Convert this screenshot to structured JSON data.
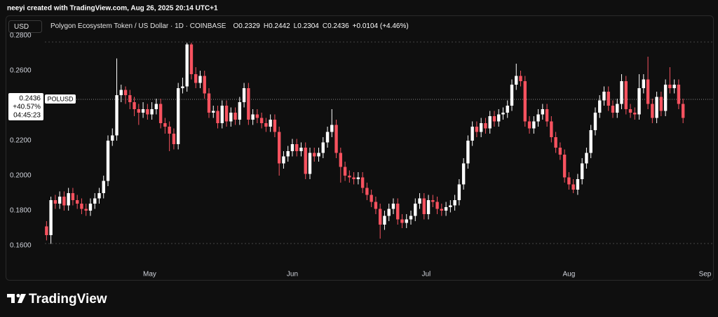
{
  "attribution": "neeyi created with TradingView.com, Aug 26, 2025 20:14 UTC+1",
  "brand": "TradingView",
  "chart_data": {
    "type": "candlestick",
    "currency": "USD",
    "title": "Polygon Ecosystem Token / US Dollar · 1D · COINBASE",
    "legend_ohlc": [
      {
        "label": "O",
        "value": 0.2329
      },
      {
        "label": "H",
        "value": 0.2442
      },
      {
        "label": "L",
        "value": 0.2304
      },
      {
        "label": "C",
        "value": 0.2436
      }
    ],
    "change": "+0.0104 (+4.46%)",
    "symbol": "POLUSD",
    "last_price": {
      "value": 0.2436,
      "label": "0.2436"
    },
    "change_pct": "+40.57%",
    "countdown": "04:45:23",
    "up_color": "#ffffff",
    "down_color": "#f7525f",
    "grid": false,
    "dotted_lines": [
      0.2764,
      0.1612
    ],
    "ylim": [
      0.1516,
      0.2812
    ],
    "yticks": [
      {
        "value": 0.16,
        "label": "0.1600"
      },
      {
        "value": 0.18,
        "label": "0.1800"
      },
      {
        "value": 0.2,
        "label": "0.2000"
      },
      {
        "value": 0.22,
        "label": "0.2200"
      },
      {
        "value": 0.26,
        "label": "0.2600"
      },
      {
        "value": 0.28,
        "label": "0.2800"
      }
    ],
    "xlim": [
      -9,
      152
    ],
    "xticks": [
      {
        "value": 23.5,
        "label": "May"
      },
      {
        "value": 56,
        "label": "Jun"
      },
      {
        "value": 86.5,
        "label": "Jul"
      },
      {
        "value": 119,
        "label": "Aug"
      },
      {
        "value": 150,
        "label": "Sep"
      }
    ],
    "ohlc": [
      [
        0.171,
        0.174,
        0.163,
        0.166
      ],
      [
        0.166,
        0.188,
        0.161,
        0.186
      ],
      [
        0.186,
        0.189,
        0.181,
        0.184
      ],
      [
        0.184,
        0.191,
        0.181,
        0.188
      ],
      [
        0.188,
        0.191,
        0.18,
        0.183
      ],
      [
        0.183,
        0.193,
        0.18,
        0.19
      ],
      [
        0.19,
        0.193,
        0.183,
        0.186
      ],
      [
        0.186,
        0.189,
        0.181,
        0.184
      ],
      [
        0.184,
        0.187,
        0.178,
        0.181
      ],
      [
        0.181,
        0.184,
        0.177,
        0.18
      ],
      [
        0.18,
        0.187,
        0.177,
        0.184
      ],
      [
        0.184,
        0.19,
        0.181,
        0.187
      ],
      [
        0.187,
        0.193,
        0.184,
        0.19
      ],
      [
        0.19,
        0.2,
        0.187,
        0.197
      ],
      [
        0.197,
        0.223,
        0.194,
        0.22
      ],
      [
        0.22,
        0.227,
        0.217,
        0.223
      ],
      [
        0.223,
        0.267,
        0.22,
        0.246
      ],
      [
        0.246,
        0.252,
        0.242,
        0.249
      ],
      [
        0.249,
        0.251,
        0.241,
        0.246
      ],
      [
        0.246,
        0.249,
        0.238,
        0.242
      ],
      [
        0.242,
        0.245,
        0.234,
        0.238
      ],
      [
        0.238,
        0.241,
        0.229,
        0.236
      ],
      [
        0.236,
        0.242,
        0.233,
        0.238
      ],
      [
        0.238,
        0.241,
        0.232,
        0.235
      ],
      [
        0.235,
        0.242,
        0.232,
        0.238
      ],
      [
        0.238,
        0.244,
        0.235,
        0.241
      ],
      [
        0.241,
        0.244,
        0.227,
        0.23
      ],
      [
        0.23,
        0.233,
        0.224,
        0.228
      ],
      [
        0.228,
        0.231,
        0.214,
        0.224
      ],
      [
        0.224,
        0.227,
        0.215,
        0.218
      ],
      [
        0.218,
        0.253,
        0.215,
        0.25
      ],
      [
        0.25,
        0.256,
        0.247,
        0.251
      ],
      [
        0.251,
        0.276,
        0.248,
        0.275
      ],
      [
        0.275,
        0.276,
        0.255,
        0.258
      ],
      [
        0.258,
        0.262,
        0.25,
        0.253
      ],
      [
        0.253,
        0.26,
        0.25,
        0.257
      ],
      [
        0.257,
        0.26,
        0.244,
        0.247
      ],
      [
        0.247,
        0.25,
        0.233,
        0.236
      ],
      [
        0.236,
        0.24,
        0.233,
        0.237
      ],
      [
        0.237,
        0.24,
        0.227,
        0.23
      ],
      [
        0.23,
        0.243,
        0.227,
        0.24
      ],
      [
        0.24,
        0.243,
        0.228,
        0.231
      ],
      [
        0.231,
        0.239,
        0.228,
        0.236
      ],
      [
        0.236,
        0.239,
        0.229,
        0.232
      ],
      [
        0.232,
        0.245,
        0.229,
        0.242
      ],
      [
        0.242,
        0.253,
        0.239,
        0.25
      ],
      [
        0.25,
        0.253,
        0.229,
        0.232
      ],
      [
        0.232,
        0.238,
        0.229,
        0.235
      ],
      [
        0.235,
        0.238,
        0.23,
        0.233
      ],
      [
        0.233,
        0.236,
        0.227,
        0.23
      ],
      [
        0.23,
        0.233,
        0.225,
        0.228
      ],
      [
        0.228,
        0.235,
        0.225,
        0.232
      ],
      [
        0.232,
        0.235,
        0.222,
        0.225
      ],
      [
        0.225,
        0.228,
        0.2,
        0.207
      ],
      [
        0.207,
        0.214,
        0.204,
        0.211
      ],
      [
        0.211,
        0.217,
        0.208,
        0.214
      ],
      [
        0.214,
        0.221,
        0.211,
        0.218
      ],
      [
        0.218,
        0.221,
        0.211,
        0.214
      ],
      [
        0.214,
        0.219,
        0.211,
        0.216
      ],
      [
        0.216,
        0.219,
        0.198,
        0.201
      ],
      [
        0.201,
        0.216,
        0.198,
        0.213
      ],
      [
        0.213,
        0.216,
        0.208,
        0.211
      ],
      [
        0.211,
        0.216,
        0.208,
        0.213
      ],
      [
        0.213,
        0.222,
        0.21,
        0.219
      ],
      [
        0.219,
        0.228,
        0.216,
        0.225
      ],
      [
        0.225,
        0.238,
        0.222,
        0.229
      ],
      [
        0.229,
        0.232,
        0.21,
        0.213
      ],
      [
        0.213,
        0.216,
        0.196,
        0.205
      ],
      [
        0.205,
        0.208,
        0.197,
        0.2
      ],
      [
        0.2,
        0.203,
        0.196,
        0.199
      ],
      [
        0.199,
        0.202,
        0.195,
        0.198
      ],
      [
        0.198,
        0.202,
        0.195,
        0.199
      ],
      [
        0.199,
        0.202,
        0.19,
        0.193
      ],
      [
        0.193,
        0.196,
        0.186,
        0.189
      ],
      [
        0.189,
        0.192,
        0.182,
        0.185
      ],
      [
        0.185,
        0.188,
        0.178,
        0.181
      ],
      [
        0.181,
        0.184,
        0.164,
        0.172
      ],
      [
        0.172,
        0.18,
        0.169,
        0.177
      ],
      [
        0.177,
        0.184,
        0.174,
        0.181
      ],
      [
        0.181,
        0.187,
        0.178,
        0.184
      ],
      [
        0.184,
        0.187,
        0.172,
        0.175
      ],
      [
        0.175,
        0.178,
        0.17,
        0.173
      ],
      [
        0.173,
        0.178,
        0.17,
        0.175
      ],
      [
        0.175,
        0.18,
        0.172,
        0.177
      ],
      [
        0.177,
        0.187,
        0.174,
        0.184
      ],
      [
        0.184,
        0.19,
        0.181,
        0.187
      ],
      [
        0.187,
        0.19,
        0.175,
        0.178
      ],
      [
        0.178,
        0.189,
        0.175,
        0.186
      ],
      [
        0.186,
        0.189,
        0.182,
        0.185
      ],
      [
        0.185,
        0.188,
        0.178,
        0.181
      ],
      [
        0.181,
        0.184,
        0.177,
        0.18
      ],
      [
        0.18,
        0.185,
        0.177,
        0.182
      ],
      [
        0.182,
        0.186,
        0.179,
        0.183
      ],
      [
        0.183,
        0.189,
        0.18,
        0.186
      ],
      [
        0.186,
        0.198,
        0.183,
        0.195
      ],
      [
        0.195,
        0.21,
        0.192,
        0.207
      ],
      [
        0.207,
        0.223,
        0.204,
        0.22
      ],
      [
        0.22,
        0.231,
        0.217,
        0.228
      ],
      [
        0.228,
        0.231,
        0.222,
        0.225
      ],
      [
        0.225,
        0.233,
        0.222,
        0.23
      ],
      [
        0.23,
        0.233,
        0.224,
        0.227
      ],
      [
        0.227,
        0.237,
        0.224,
        0.234
      ],
      [
        0.234,
        0.237,
        0.228,
        0.231
      ],
      [
        0.231,
        0.238,
        0.228,
        0.235
      ],
      [
        0.235,
        0.239,
        0.232,
        0.236
      ],
      [
        0.236,
        0.243,
        0.233,
        0.24
      ],
      [
        0.24,
        0.255,
        0.237,
        0.252
      ],
      [
        0.252,
        0.264,
        0.249,
        0.257
      ],
      [
        0.257,
        0.26,
        0.251,
        0.254
      ],
      [
        0.254,
        0.257,
        0.228,
        0.231
      ],
      [
        0.231,
        0.234,
        0.224,
        0.227
      ],
      [
        0.227,
        0.234,
        0.224,
        0.231
      ],
      [
        0.231,
        0.238,
        0.228,
        0.235
      ],
      [
        0.235,
        0.241,
        0.232,
        0.238
      ],
      [
        0.238,
        0.241,
        0.228,
        0.231
      ],
      [
        0.231,
        0.234,
        0.219,
        0.222
      ],
      [
        0.222,
        0.225,
        0.213,
        0.216
      ],
      [
        0.216,
        0.219,
        0.209,
        0.212
      ],
      [
        0.212,
        0.215,
        0.196,
        0.199
      ],
      [
        0.199,
        0.202,
        0.192,
        0.195
      ],
      [
        0.195,
        0.198,
        0.19,
        0.192
      ],
      [
        0.192,
        0.201,
        0.189,
        0.198
      ],
      [
        0.198,
        0.21,
        0.195,
        0.207
      ],
      [
        0.207,
        0.216,
        0.204,
        0.213
      ],
      [
        0.213,
        0.229,
        0.21,
        0.226
      ],
      [
        0.226,
        0.239,
        0.223,
        0.236
      ],
      [
        0.236,
        0.246,
        0.233,
        0.243
      ],
      [
        0.243,
        0.251,
        0.24,
        0.248
      ],
      [
        0.248,
        0.251,
        0.237,
        0.24
      ],
      [
        0.24,
        0.243,
        0.233,
        0.236
      ],
      [
        0.236,
        0.244,
        0.233,
        0.241
      ],
      [
        0.241,
        0.258,
        0.238,
        0.254
      ],
      [
        0.254,
        0.257,
        0.235,
        0.238
      ],
      [
        0.238,
        0.241,
        0.233,
        0.236
      ],
      [
        0.236,
        0.239,
        0.232,
        0.235
      ],
      [
        0.235,
        0.258,
        0.232,
        0.25
      ],
      [
        0.25,
        0.258,
        0.247,
        0.255
      ],
      [
        0.255,
        0.268,
        0.238,
        0.241
      ],
      [
        0.241,
        0.244,
        0.23,
        0.233
      ],
      [
        0.233,
        0.248,
        0.23,
        0.245
      ],
      [
        0.245,
        0.248,
        0.234,
        0.237
      ],
      [
        0.237,
        0.255,
        0.234,
        0.252
      ],
      [
        0.252,
        0.262,
        0.247,
        0.25
      ],
      [
        0.25,
        0.255,
        0.247,
        0.252
      ],
      [
        0.252,
        0.255,
        0.238,
        0.241
      ],
      [
        0.241,
        0.244,
        0.23,
        0.233
      ]
    ]
  }
}
